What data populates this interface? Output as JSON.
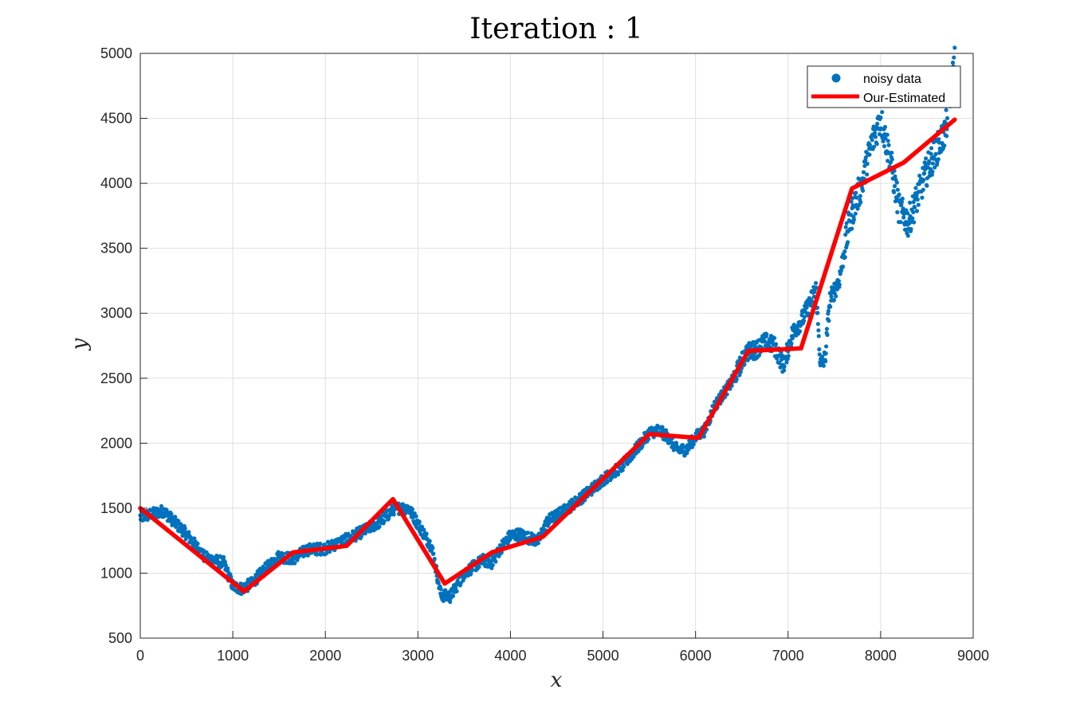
{
  "colors": {
    "noisy": "#0072BD",
    "estimated": "#FF0000",
    "grid": "#DFDFDF",
    "axis": "#262626"
  },
  "chart_data": {
    "type": "scatter",
    "title": "Iteration : 1",
    "xlabel": "x",
    "ylabel": "y",
    "xlim": [
      0,
      9000
    ],
    "ylim": [
      500,
      5000
    ],
    "xticks": [
      "0",
      "1000",
      "2000",
      "3000",
      "4000",
      "5000",
      "6000",
      "7000",
      "8000",
      "9000"
    ],
    "yticks": [
      "500",
      "1000",
      "1500",
      "2000",
      "2500",
      "3000",
      "3500",
      "4000",
      "4500",
      "5000"
    ],
    "grid": true,
    "legend_position": "top-right",
    "series": [
      {
        "name": "noisy data",
        "kind": "scatter",
        "color": "#0072BD",
        "trend_x": [
          0,
          250,
          500,
          700,
          900,
          1000,
          1100,
          1200,
          1350,
          1500,
          1650,
          1800,
          2000,
          2200,
          2400,
          2600,
          2750,
          2900,
          3000,
          3150,
          3250,
          3350,
          3500,
          3700,
          3800,
          3900,
          4000,
          4100,
          4200,
          4300,
          4400,
          4600,
          4800,
          5000,
          5200,
          5400,
          5500,
          5600,
          5700,
          5800,
          5900,
          6000,
          6100,
          6200,
          6400,
          6550,
          6650,
          6750,
          6850,
          6950,
          7050,
          7150,
          7250,
          7300,
          7350,
          7400,
          7450,
          7550,
          7650,
          7700,
          7800,
          7900,
          8000,
          8050,
          8100,
          8200,
          8300,
          8400,
          8500,
          8600,
          8700,
          8800
        ],
        "trend_y": [
          1430,
          1480,
          1300,
          1120,
          1080,
          900,
          880,
          920,
          1030,
          1130,
          1110,
          1180,
          1190,
          1250,
          1320,
          1400,
          1500,
          1500,
          1380,
          1200,
          830,
          820,
          1000,
          1100,
          1080,
          1200,
          1290,
          1300,
          1270,
          1250,
          1400,
          1490,
          1600,
          1720,
          1820,
          1990,
          2080,
          2100,
          2050,
          1950,
          1950,
          2050,
          2100,
          2280,
          2480,
          2700,
          2720,
          2780,
          2750,
          2600,
          2850,
          2950,
          3100,
          3200,
          2600,
          2650,
          3100,
          3250,
          3650,
          3800,
          4000,
          4300,
          4500,
          4350,
          4200,
          3800,
          3700,
          3900,
          4100,
          4250,
          4400,
          4950
        ]
      },
      {
        "name": "Our-Estimated",
        "kind": "line",
        "color": "#FF0000",
        "x": [
          0,
          1120,
          1650,
          2230,
          2730,
          3290,
          3800,
          4350,
          5500,
          6030,
          6570,
          7140,
          7690,
          8250,
          8800
        ],
        "y": [
          1500,
          860,
          1160,
          1210,
          1570,
          920,
          1160,
          1280,
          2070,
          2040,
          2710,
          2730,
          3960,
          4160,
          4490
        ]
      }
    ]
  }
}
